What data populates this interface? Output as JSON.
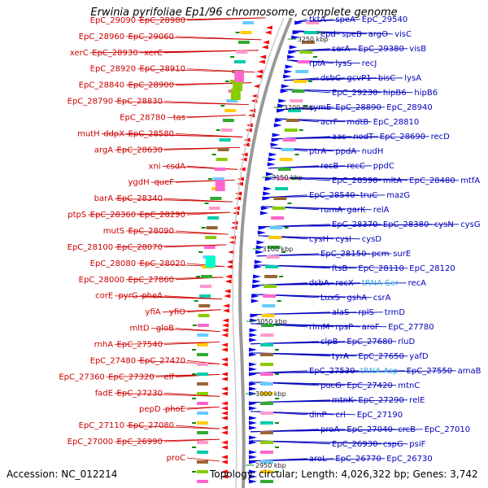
{
  "title": "Erwinia pyrifoliae Ep1/96 chromosome, complete genome",
  "accession": "Accession: NC_012214",
  "summary": "Topology: circular; Length: 4,026,322 bp; Genes: 3,742",
  "colors": {
    "left_label": "#cc0000",
    "right_label": "#0000bb",
    "rna_label": "#33aadd",
    "backbone": "#999999",
    "tick_mark": "#118811"
  },
  "ticks": [
    "3250 kbp",
    "3200 kbp",
    "3150 kbp",
    "3100 kbp",
    "3050 kbp",
    "3000 kbp",
    "2950 kbp"
  ],
  "left_labels": [
    "EpC_29090",
    "EpC_28980",
    "EpC_28960",
    "EpC_29060",
    "xerC",
    "EpC_28930",
    "xerC",
    "EpC_28920",
    "EpC_28910",
    "EpC_28840",
    "EpC_28900",
    "EpC_28790",
    "EpC_28830",
    "EpC_28780",
    "tas",
    "mutH",
    "ddpX",
    "EpC_28580",
    "argA",
    "EpC_28630",
    "xni",
    "csdA",
    "ygdH",
    "queF",
    "barA",
    "EpC_28340",
    "ptpS",
    "EpC_28360",
    "EpC_28290",
    "mutS",
    "EpC_28090",
    "EpC_28100",
    "EpC_28070",
    "EpC_28080",
    "EpC_28020",
    "EpC_28000",
    "EpC_27860",
    "corE",
    "pyrG",
    "pheA",
    "yfiA",
    "yfiO",
    "mltD",
    "gloB",
    "rnhA",
    "EpC_27540",
    "EpC_27480",
    "EpC_27470",
    "EpC_27360",
    "EpC_27320",
    "elf",
    "fadE",
    "EpC_27230",
    "pepD",
    "phoE",
    "EpC_27110",
    "EpC_27080",
    "EpC_27000",
    "EpC_26990",
    "proC"
  ],
  "right_labels": [
    "tktA",
    "speA",
    "EpC_29540",
    "epd",
    "speB",
    "argO",
    "visC",
    "serA",
    "EpC_29380",
    "visB",
    "rpiA",
    "lysS",
    "recJ",
    "dsbC",
    "gcvP1",
    "bisC",
    "lysA",
    "EpC_29230",
    "hipB6",
    "hipB6",
    "symE",
    "EpC_28890",
    "EpC_28940",
    "acrF",
    "mdtB",
    "EpC_28810",
    "aas",
    "nodT",
    "EpC_28690",
    "recD",
    "ptrA",
    "ppdA",
    "nudH",
    "recB",
    "recC",
    "ppdC",
    "EpC_28590",
    "mltA",
    "EpC_28480",
    "mtfA",
    "EpC_28540",
    "truC",
    "mazG",
    "rumA",
    "garK",
    "relA",
    "EpC_28370",
    "EpC_28380",
    "cysN",
    "cysG",
    "cysH",
    "cysI",
    "cysD",
    "EpC_28150",
    "pcm",
    "surE",
    "ftsB",
    "EpC_28110",
    "EpC_28120",
    "dsbA",
    "recX",
    "recA",
    "LuxS",
    "gshA",
    "csrA",
    "alaS",
    "rplS",
    "trmD",
    "rimM",
    "rpsP",
    "aroF",
    "EpC_27780",
    "clpB",
    "EpC_27680",
    "rluD",
    "tyrA",
    "EpC_27650",
    "yafD",
    "EpC_27530",
    "EpC_27550",
    "amaB",
    "pucG",
    "EpC_27420",
    "mtnC",
    "mtnK",
    "EpC_27290",
    "relE",
    "dinP",
    "crl",
    "EpC_27190",
    "proA",
    "EpC_27040",
    "crcB",
    "EpC_27010",
    "EpC_26930",
    "cspG",
    "psiF",
    "aroL",
    "EpC_26770",
    "EpC_26730"
  ],
  "rna_labels": [
    "tRNA-Ser",
    "tRNA-Asp"
  ]
}
